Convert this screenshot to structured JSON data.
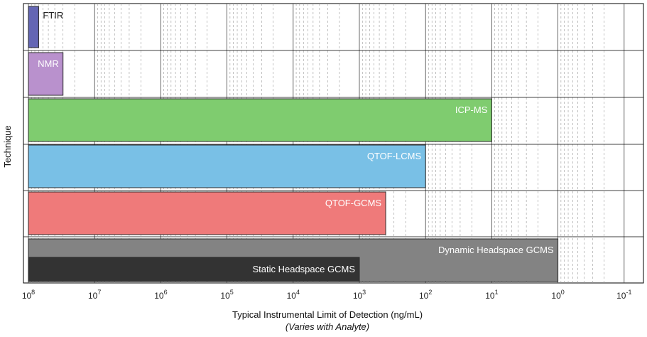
{
  "chart_data": {
    "type": "bar",
    "orientation": "horizontal",
    "xscale": "log",
    "xaxis_reversed": true,
    "xlim": [
      100000000,
      0.1
    ],
    "xlabel": "Typical Instrumental Limit of Detection (ng/mL)",
    "xlabel_note": "(Varies with Analyte)",
    "ylabel": "Technique",
    "grid": true,
    "xticks": [
      {
        "base": "10",
        "exp": "8"
      },
      {
        "base": "10",
        "exp": "7"
      },
      {
        "base": "10",
        "exp": "6"
      },
      {
        "base": "10",
        "exp": "5"
      },
      {
        "base": "10",
        "exp": "4"
      },
      {
        "base": "10",
        "exp": "3"
      },
      {
        "base": "10",
        "exp": "2"
      },
      {
        "base": "10",
        "exp": "1"
      },
      {
        "base": "10",
        "exp": "0"
      },
      {
        "base": "10",
        "exp": "-1"
      }
    ],
    "bars": [
      {
        "label": "FTIR",
        "value": 70000000,
        "color": "#6466b4",
        "label_color": "#222222",
        "label_align": "outside"
      },
      {
        "label": "NMR",
        "value": 30000000,
        "color": "#b991cd",
        "label_color": "#ffffff",
        "label_align": "inside"
      },
      {
        "label": "ICP-MS",
        "value": 10,
        "color": "#7fcc6f",
        "label_color": "#ffffff",
        "label_align": "inside"
      },
      {
        "label": "QTOF-LCMS",
        "value": 100,
        "color": "#79c0e6",
        "label_color": "#ffffff",
        "label_align": "inside"
      },
      {
        "label": "QTOF-GCMS",
        "value": 400,
        "color": "#ef7a7a",
        "label_color": "#ffffff",
        "label_align": "inside"
      },
      {
        "label": "Dynamic Headspace GCMS",
        "value": 1,
        "color": "#838383",
        "label_color": "#ffffff",
        "label_align": "inside"
      },
      {
        "label": "Static Headspace GCMS",
        "value": 1000,
        "color": "#333333",
        "label_color": "#ffffff",
        "label_align": "inside"
      }
    ]
  }
}
